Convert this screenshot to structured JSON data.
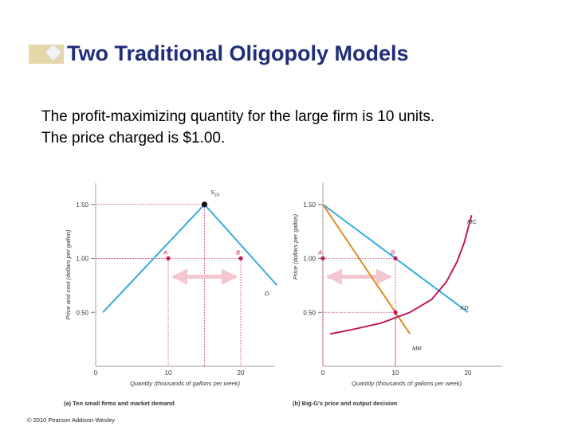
{
  "slide": {
    "title": "Two Traditional Oligopoly Models",
    "body_lines": [
      "The profit-maximizing quantity for the large firm is 10 units.",
      "The price charged is $1.00."
    ],
    "copyright": "© 2010 Pearson Addison-Wesley"
  },
  "colors": {
    "title": "#1f2d7a",
    "demand": "#33aadd",
    "marginal_revenue": "#e08a1e",
    "marginal_cost": "#c2185b",
    "arrow": "#f4c6cf",
    "point": "#c2185b"
  },
  "chart_data": [
    {
      "type": "line",
      "caption": "(a) Ten small firms and market demand",
      "xlabel": "Quantity (thousands of gallons per week)",
      "ylabel": "Price and cost (dollars per gallon)",
      "x_ticks": [
        "0",
        "10",
        "20"
      ],
      "y_ticks": [
        "0.50",
        "1.00",
        "1.50"
      ],
      "xlim": [
        0,
        25
      ],
      "ylim": [
        0,
        1.65
      ],
      "series": [
        {
          "name": "S10",
          "label": "S",
          "label_sub": "10",
          "x": [
            1,
            15
          ],
          "y": [
            0.5,
            1.5
          ]
        },
        {
          "name": "D",
          "label": "D",
          "x": [
            15,
            25
          ],
          "y": [
            1.5,
            0.75
          ]
        }
      ],
      "points": [
        {
          "label": "",
          "x": 15,
          "y": 1.5
        },
        {
          "label": "A",
          "x": 10,
          "y": 1.0
        },
        {
          "label": "B",
          "x": 20,
          "y": 1.0
        }
      ],
      "arrow": {
        "x1": 10,
        "x2": 20,
        "y": 0.83
      }
    },
    {
      "type": "line",
      "caption": "(b) Big-G's price and output decision",
      "xlabel": "Quantity (thousands of gallons per week)",
      "ylabel": "Price (dollars per gallon)",
      "x_ticks": [
        "0",
        "10",
        "20"
      ],
      "y_ticks": [
        "0.50",
        "1.00",
        "1.50"
      ],
      "xlim": [
        0,
        25
      ],
      "ylim": [
        0,
        1.65
      ],
      "series": [
        {
          "name": "XD",
          "label": "XD",
          "x": [
            0,
            20
          ],
          "y": [
            1.5,
            0.5
          ]
        },
        {
          "name": "MR",
          "label": "MR",
          "x": [
            0,
            12
          ],
          "y": [
            1.5,
            0.3
          ]
        },
        {
          "name": "MC",
          "label": "MC",
          "x": [
            1,
            4,
            8,
            12,
            15,
            17,
            18.5,
            19.5,
            20.5
          ],
          "y": [
            0.3,
            0.34,
            0.4,
            0.5,
            0.62,
            0.78,
            0.97,
            1.15,
            1.4
          ]
        }
      ],
      "points": [
        {
          "label": "A",
          "x": 0,
          "y": 1.0
        },
        {
          "label": "B",
          "x": 10,
          "y": 1.0
        },
        {
          "label": "",
          "x": 10,
          "y": 0.5
        }
      ],
      "arrow": {
        "x1": 0,
        "x2": 10,
        "y": 0.83
      }
    }
  ]
}
